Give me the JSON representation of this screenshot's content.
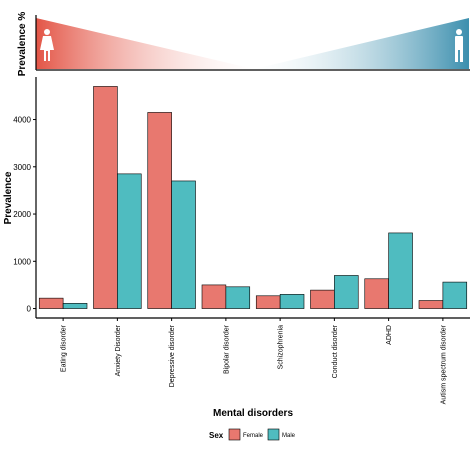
{
  "colors": {
    "female": "#e8786f",
    "male": "#4fbcc0",
    "header_female": "#e35546",
    "header_male": "#3c8fae"
  },
  "icons": {
    "female": "female-person-icon",
    "male": "male-person-icon"
  },
  "header": {
    "ylabel": "Prevalence %"
  },
  "chart_data": {
    "type": "bar",
    "xlabel": "Mental disorders",
    "ylabel": "Prevalence",
    "ylim": [
      -200,
      4900
    ],
    "yticks": [
      0,
      1000,
      2000,
      3000,
      4000
    ],
    "grid": false,
    "legend_position": "bottom",
    "legend_title": "Sex",
    "categories": [
      "Eating disorder",
      "Anxiety Disorder",
      "Depressive disorder",
      "Bipolar disorder",
      "Schizophrenia",
      "Conduct disorder",
      "ADHD",
      "Autism spectrum disorder"
    ],
    "series": [
      {
        "name": "Female",
        "values": [
          220,
          4700,
          4150,
          500,
          270,
          390,
          630,
          170
        ]
      },
      {
        "name": "Male",
        "values": [
          110,
          2850,
          2700,
          460,
          300,
          700,
          1600,
          560
        ]
      }
    ]
  }
}
